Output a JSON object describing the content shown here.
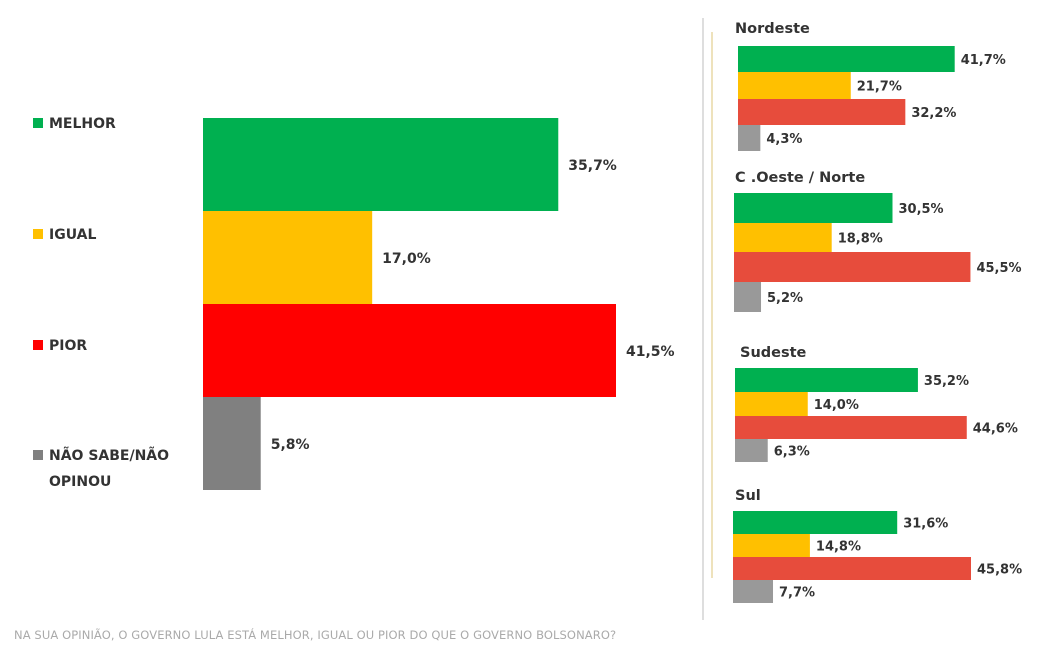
{
  "colors": {
    "melhor": "#00b050",
    "igual": "#ffc000",
    "pior": "#ff0000",
    "pior_regional": "#e74c3c",
    "nao_sabe": "#808080",
    "nao_sabe_regional": "#999999",
    "divider_gold": "#e8d9a6",
    "divider_gray": "#c8c8c8"
  },
  "legend": [
    {
      "label_lines": [
        "MELHOR"
      ]
    },
    {
      "label_lines": [
        "IGUAL"
      ]
    },
    {
      "label_lines": [
        "PIOR"
      ]
    },
    {
      "label_lines": [
        "NÃO SABE/NÃO",
        "OPINOU"
      ]
    }
  ],
  "chart_data": [
    {
      "type": "bar",
      "orientation": "horizontal",
      "title": "",
      "categories": [
        "MELHOR",
        "IGUAL",
        "PIOR",
        "NÃO SABE/NÃO OPINOU"
      ],
      "values": [
        35.7,
        17.0,
        41.5,
        5.8
      ],
      "value_labels": [
        "35,7%",
        "17,0%",
        "41,5%",
        "5,8%"
      ]
    },
    {
      "type": "bar",
      "orientation": "horizontal",
      "title": "Nordeste",
      "categories": [
        "MELHOR",
        "IGUAL",
        "PIOR",
        "NÃO SABE/NÃO OPINOU"
      ],
      "values": [
        41.7,
        21.7,
        32.2,
        4.3
      ],
      "value_labels": [
        "41,7%",
        "21,7%",
        "32,2%",
        "4,3%"
      ]
    },
    {
      "type": "bar",
      "orientation": "horizontal",
      "title": "C .Oeste / Norte",
      "categories": [
        "MELHOR",
        "IGUAL",
        "PIOR",
        "NÃO SABE/NÃO OPINOU"
      ],
      "values": [
        30.5,
        18.8,
        45.5,
        5.2
      ],
      "value_labels": [
        "30,5%",
        "18,8%",
        "45,5%",
        "5,2%"
      ]
    },
    {
      "type": "bar",
      "orientation": "horizontal",
      "title": "Sudeste",
      "categories": [
        "MELHOR",
        "IGUAL",
        "PIOR",
        "NÃO SABE/NÃO OPINOU"
      ],
      "values": [
        35.2,
        14.0,
        44.6,
        6.3
      ],
      "value_labels": [
        "35,2%",
        "14,0%",
        "44,6%",
        "6,3%"
      ]
    },
    {
      "type": "bar",
      "orientation": "horizontal",
      "title": "Sul",
      "categories": [
        "MELHOR",
        "IGUAL",
        "PIOR",
        "NÃO SABE/NÃO OPINOU"
      ],
      "values": [
        31.6,
        14.8,
        45.8,
        7.7
      ],
      "value_labels": [
        "31,6%",
        "14,8%",
        "45,8%",
        "7,7%"
      ]
    }
  ],
  "footnote": "NA SUA OPINIÃO, O GOVERNO LULA ESTÁ MELHOR, IGUAL OU PIOR DO QUE O GOVERNO BOLSONARO?"
}
